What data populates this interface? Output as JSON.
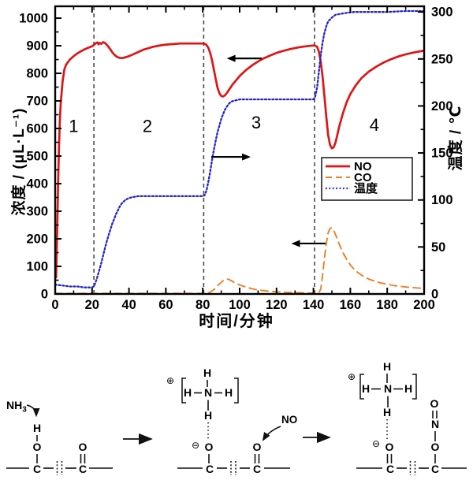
{
  "chart_data": {
    "type": "line",
    "title": "",
    "xlabel": "时间/分钟",
    "ylabel_left": "浓度 / (μL·L⁻¹)",
    "ylabel_right": "温度 / ℃",
    "xlim": [
      0,
      200
    ],
    "ylim_left": [
      0,
      1043
    ],
    "ylim_right": [
      0,
      306
    ],
    "x_ticks": [
      0,
      20,
      40,
      60,
      80,
      100,
      120,
      140,
      160,
      180,
      200
    ],
    "x_minor_step": 10,
    "y_left_ticks": [
      0,
      100,
      200,
      300,
      400,
      500,
      600,
      700,
      800,
      900,
      1000
    ],
    "y_left_minor_step": 50,
    "y_right_ticks": [
      0,
      50,
      100,
      150,
      200,
      250,
      300
    ],
    "y_right_minor_step": 25,
    "grid": false,
    "legend_position": "middle-right",
    "phase_boundaries": [
      21,
      80.5,
      140.6
    ],
    "annotations": [
      {
        "text": "1",
        "t": 10,
        "v": 610
      },
      {
        "text": "2",
        "t": 50,
        "v": 610
      },
      {
        "text": "3",
        "t": 109,
        "v": 623
      },
      {
        "text": "4",
        "t": 173,
        "v": 614
      }
    ],
    "axis_arrows": [
      {
        "t_tail": 112,
        "t_head": 93,
        "v": 854,
        "meaning": "NO reads left axis"
      },
      {
        "t_tail": 84.6,
        "t_head": 106,
        "v": 497,
        "meaning": "temperature reads right axis"
      },
      {
        "t_tail": 146.6,
        "t_head": 128,
        "v": 183,
        "meaning": "CO reads left axis"
      }
    ],
    "series": [
      {
        "name": "NO",
        "axis": "left",
        "style": "solid",
        "color": "#e01414",
        "points": [
          [
            0.5,
            60
          ],
          [
            1,
            200
          ],
          [
            1.5,
            370
          ],
          [
            2,
            520
          ],
          [
            2.5,
            620
          ],
          [
            3,
            690
          ],
          [
            4,
            770
          ],
          [
            5,
            815
          ],
          [
            6,
            832
          ],
          [
            8,
            850
          ],
          [
            10,
            862
          ],
          [
            12,
            872
          ],
          [
            14,
            880
          ],
          [
            16,
            887
          ],
          [
            18,
            893
          ],
          [
            20,
            898
          ],
          [
            21,
            903
          ],
          [
            22,
            909
          ],
          [
            23,
            912
          ],
          [
            23.5,
            905
          ],
          [
            24,
            910
          ],
          [
            25,
            907
          ],
          [
            26,
            913
          ],
          [
            27,
            910
          ],
          [
            28,
            903
          ],
          [
            29,
            895
          ],
          [
            30,
            886
          ],
          [
            31,
            876
          ],
          [
            32,
            868
          ],
          [
            33,
            862
          ],
          [
            34,
            858
          ],
          [
            35,
            856
          ],
          [
            36,
            855
          ],
          [
            37,
            856
          ],
          [
            38,
            858
          ],
          [
            40,
            862
          ],
          [
            42,
            868
          ],
          [
            44,
            874
          ],
          [
            46,
            880
          ],
          [
            48,
            886
          ],
          [
            50,
            890
          ],
          [
            53,
            896
          ],
          [
            56,
            900
          ],
          [
            60,
            904
          ],
          [
            64,
            906
          ],
          [
            68,
            908
          ],
          [
            72,
            908
          ],
          [
            76,
            908
          ],
          [
            80,
            908
          ],
          [
            81,
            907
          ],
          [
            82,
            903
          ],
          [
            83,
            893
          ],
          [
            84,
            874
          ],
          [
            85,
            848
          ],
          [
            86,
            815
          ],
          [
            87,
            780
          ],
          [
            88,
            748
          ],
          [
            89,
            728
          ],
          [
            90,
            718
          ],
          [
            91,
            716
          ],
          [
            92,
            720
          ],
          [
            93,
            728
          ],
          [
            94,
            738
          ],
          [
            95,
            748
          ],
          [
            96,
            758
          ],
          [
            98,
            774
          ],
          [
            100,
            790
          ],
          [
            102,
            803
          ],
          [
            104,
            815
          ],
          [
            107,
            830
          ],
          [
            110,
            843
          ],
          [
            113,
            854
          ],
          [
            116,
            863
          ],
          [
            120,
            874
          ],
          [
            124,
            882
          ],
          [
            128,
            889
          ],
          [
            132,
            894
          ],
          [
            136,
            898
          ],
          [
            140,
            901
          ],
          [
            141,
            900
          ],
          [
            142,
            896
          ],
          [
            143,
            878
          ],
          [
            144,
            840
          ],
          [
            145,
            785
          ],
          [
            146,
            715
          ],
          [
            147,
            640
          ],
          [
            148,
            575
          ],
          [
            149,
            540
          ],
          [
            150,
            528
          ],
          [
            151,
            532
          ],
          [
            152,
            550
          ],
          [
            153,
            578
          ],
          [
            154,
            608
          ],
          [
            156,
            655
          ],
          [
            158,
            695
          ],
          [
            160,
            725
          ],
          [
            163,
            757
          ],
          [
            166,
            782
          ],
          [
            170,
            806
          ],
          [
            174,
            824
          ],
          [
            178,
            839
          ],
          [
            182,
            851
          ],
          [
            186,
            861
          ],
          [
            190,
            869
          ],
          [
            194,
            875
          ],
          [
            198,
            880
          ],
          [
            200,
            882
          ]
        ]
      },
      {
        "name": "CO",
        "axis": "left",
        "style": "dashed",
        "color": "#ee7f22",
        "points": [
          [
            0,
            2
          ],
          [
            40,
            2
          ],
          [
            80,
            2
          ],
          [
            82,
            2
          ],
          [
            84,
            6
          ],
          [
            86,
            16
          ],
          [
            88,
            30
          ],
          [
            90,
            42
          ],
          [
            91,
            48
          ],
          [
            92,
            52
          ],
          [
            93,
            54
          ],
          [
            94,
            53
          ],
          [
            95,
            50
          ],
          [
            96,
            46
          ],
          [
            98,
            39
          ],
          [
            100,
            33
          ],
          [
            102,
            28
          ],
          [
            105,
            22
          ],
          [
            108,
            17
          ],
          [
            112,
            13
          ],
          [
            116,
            10
          ],
          [
            120,
            8
          ],
          [
            125,
            6
          ],
          [
            130,
            5
          ],
          [
            135,
            4
          ],
          [
            140,
            3
          ],
          [
            142,
            2
          ],
          [
            143,
            4
          ],
          [
            144,
            20
          ],
          [
            145,
            70
          ],
          [
            146,
            130
          ],
          [
            147,
            185
          ],
          [
            148,
            222
          ],
          [
            149,
            238
          ],
          [
            150,
            240
          ],
          [
            151,
            230
          ],
          [
            152,
            215
          ],
          [
            153,
            198
          ],
          [
            154,
            180
          ],
          [
            156,
            150
          ],
          [
            158,
            126
          ],
          [
            160,
            105
          ],
          [
            162,
            90
          ],
          [
            164,
            78
          ],
          [
            167,
            64
          ],
          [
            170,
            54
          ],
          [
            173,
            47
          ],
          [
            176,
            41
          ],
          [
            180,
            35
          ],
          [
            184,
            30
          ],
          [
            188,
            27
          ],
          [
            192,
            24
          ],
          [
            196,
            22
          ],
          [
            200,
            20
          ]
        ]
      },
      {
        "name": "温度",
        "axis": "right",
        "style": "dotted",
        "color": "#2424cf",
        "points": [
          [
            0,
            10
          ],
          [
            4,
            9
          ],
          [
            8,
            8
          ],
          [
            12,
            8
          ],
          [
            16,
            7
          ],
          [
            20,
            7
          ],
          [
            21,
            8
          ],
          [
            22,
            13
          ],
          [
            23,
            19
          ],
          [
            24,
            26
          ],
          [
            25,
            33
          ],
          [
            26,
            41
          ],
          [
            27,
            49
          ],
          [
            28,
            56
          ],
          [
            29,
            63
          ],
          [
            30,
            69
          ],
          [
            31,
            75
          ],
          [
            32,
            80
          ],
          [
            33,
            85
          ],
          [
            34,
            89
          ],
          [
            35,
            93
          ],
          [
            36,
            96
          ],
          [
            38,
            100
          ],
          [
            40,
            102
          ],
          [
            42,
            103
          ],
          [
            45,
            104
          ],
          [
            50,
            104
          ],
          [
            55,
            104
          ],
          [
            60,
            104
          ],
          [
            70,
            104
          ],
          [
            80,
            104
          ],
          [
            81,
            105
          ],
          [
            82,
            110
          ],
          [
            83,
            119
          ],
          [
            84,
            130
          ],
          [
            85,
            142
          ],
          [
            86,
            153
          ],
          [
            87,
            163
          ],
          [
            88,
            172
          ],
          [
            89,
            179
          ],
          [
            90,
            186
          ],
          [
            91,
            191
          ],
          [
            92,
            196
          ],
          [
            93,
            199
          ],
          [
            94,
            202
          ],
          [
            95,
            204
          ],
          [
            96,
            205
          ],
          [
            98,
            206
          ],
          [
            100,
            207
          ],
          [
            110,
            207
          ],
          [
            120,
            207
          ],
          [
            130,
            207
          ],
          [
            140,
            207
          ],
          [
            141,
            210
          ],
          [
            142,
            220
          ],
          [
            143,
            237
          ],
          [
            144,
            255
          ],
          [
            145,
            268
          ],
          [
            146,
            278
          ],
          [
            147,
            285
          ],
          [
            148,
            290
          ],
          [
            149,
            292
          ],
          [
            150,
            294
          ],
          [
            152,
            297
          ],
          [
            155,
            298
          ],
          [
            158,
            299
          ],
          [
            162,
            300
          ],
          [
            166,
            300
          ],
          [
            170,
            300
          ],
          [
            180,
            300
          ],
          [
            190,
            301
          ],
          [
            200,
            301
          ]
        ]
      }
    ]
  },
  "diagram": {
    "atoms": {
      "h": "H",
      "n": "N",
      "o": "O",
      "c": "C",
      "plus": "⊕",
      "minus": "⊖"
    },
    "labels": {
      "nh": "NH",
      "nh_sub": "3",
      "no": "NO"
    }
  }
}
